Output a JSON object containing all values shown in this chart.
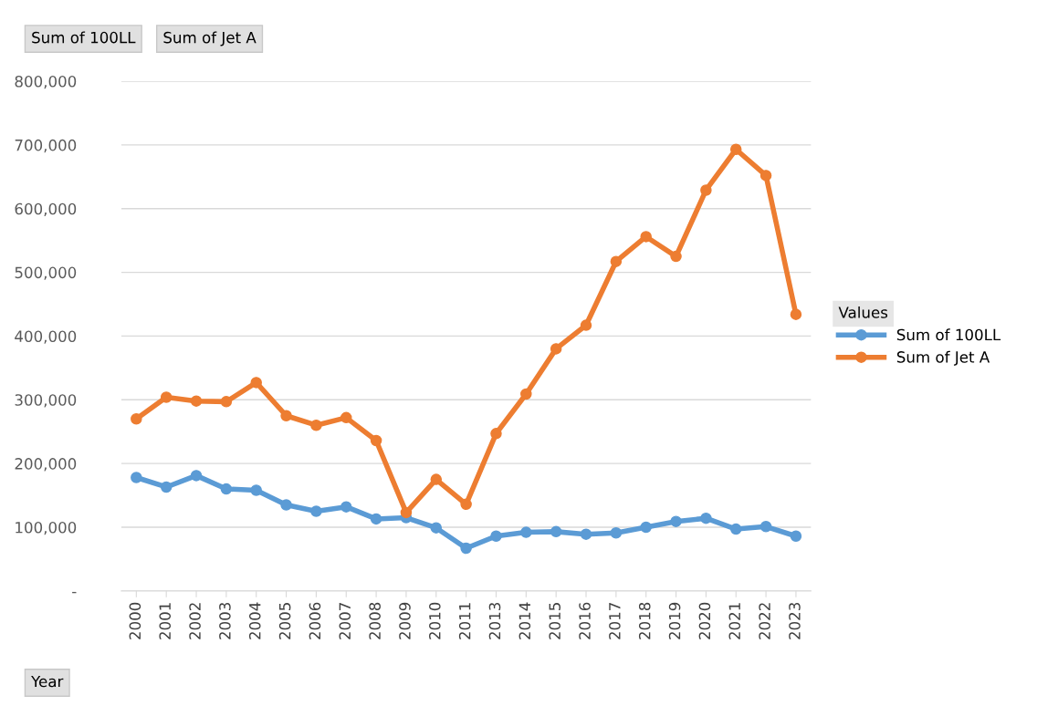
{
  "chart_data": {
    "type": "line",
    "categories": [
      "2000",
      "2001",
      "2002",
      "2003",
      "2004",
      "2005",
      "2006",
      "2007",
      "2008",
      "2009",
      "2010",
      "2011",
      "2013",
      "2014",
      "2015",
      "2016",
      "2017",
      "2018",
      "2019",
      "2020",
      "2021",
      "2022",
      "2023"
    ],
    "series": [
      {
        "name": "Sum of 100LL",
        "color": "#5b9bd5",
        "values": [
          178000,
          163000,
          181000,
          160000,
          158000,
          135000,
          125000,
          132000,
          113000,
          115000,
          99000,
          67000,
          86000,
          92000,
          93000,
          89000,
          91000,
          100000,
          109000,
          114000,
          97000,
          101000,
          86000
        ]
      },
      {
        "name": "Sum of Jet A",
        "color": "#ed7d31",
        "values": [
          270000,
          304000,
          298000,
          297000,
          327000,
          275000,
          260000,
          272000,
          236000,
          123000,
          175000,
          136000,
          247000,
          309000,
          380000,
          417000,
          517000,
          556000,
          525000,
          629000,
          693000,
          652000,
          434000
        ]
      }
    ],
    "ylim": [
      0,
      800000
    ],
    "yticks": [
      {
        "value": 0,
        "label": "-"
      },
      {
        "value": 100000,
        "label": "100,000"
      },
      {
        "value": 200000,
        "label": "200,000"
      },
      {
        "value": 300000,
        "label": "300,000"
      },
      {
        "value": 400000,
        "label": "400,000"
      },
      {
        "value": 500000,
        "label": "500,000"
      },
      {
        "value": 600000,
        "label": "600,000"
      },
      {
        "value": 700000,
        "label": "700,000"
      },
      {
        "value": 800000,
        "label": "800,000"
      }
    ],
    "grid": "y",
    "legend": "right",
    "legend_title": "Values",
    "marker": "circle",
    "line_style": "solid",
    "annotations": [
      "Sum of 100LL",
      "Sum of Jet A",
      "Year"
    ]
  }
}
